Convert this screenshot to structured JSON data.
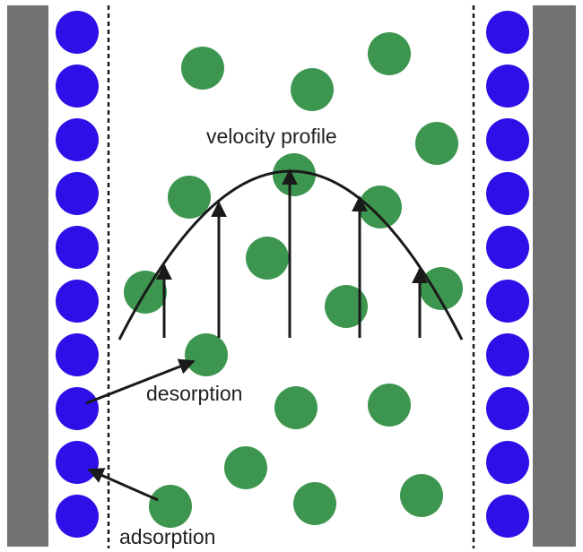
{
  "labels": {
    "velocity_profile": "velocity profile",
    "desorption": "desorption",
    "adsorption": "adsorption"
  },
  "colors": {
    "wall": "#717171",
    "adsorbed_particle": "#2d10e8",
    "free_particle": "#3d9650",
    "boundary_line": "#1a1a1a",
    "arrow": "#1a1a1a",
    "background": "#ffffff"
  }
}
